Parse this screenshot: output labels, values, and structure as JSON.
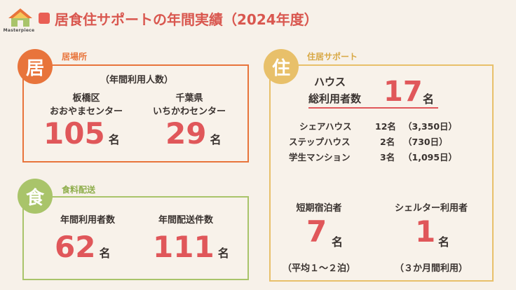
{
  "header": {
    "logo_text": "Masterpiece",
    "title": "居食住サポートの年間実績（2024年度）"
  },
  "colors": {
    "accent": "#e0575a",
    "kyo": "#e8743b",
    "shoku": "#a9c46a",
    "ju": "#e8c06a"
  },
  "kyo": {
    "icon_char": "居",
    "label": "居場所",
    "subheader": "（年間利用人数）",
    "left": {
      "name1": "板橋区",
      "name2": "おおやまセンター",
      "value": "105",
      "unit": "名"
    },
    "right": {
      "name1": "千葉県",
      "name2": "いちかわセンター",
      "value": "29",
      "unit": "名"
    }
  },
  "shoku": {
    "icon_char": "食",
    "label": "食料配送",
    "left": {
      "name": "年間利用者数",
      "value": "62",
      "unit": "名"
    },
    "right": {
      "name": "年間配送件数",
      "value": "111",
      "unit": "名"
    }
  },
  "ju": {
    "icon_char": "住",
    "label": "住居サポート",
    "house_label1": "ハウス",
    "house_label2": "総利用者数",
    "house_value": "17",
    "house_unit": "名",
    "rows": [
      {
        "name": "シェアハウス",
        "count": "12名",
        "days": "（3,350日）"
      },
      {
        "name": "ステップハウス",
        "count": "2名",
        "days": "（730日）"
      },
      {
        "name": "学生マンション",
        "count": "3名",
        "days": "（1,095日）"
      }
    ],
    "short": {
      "name": "短期宿泊者",
      "value": "7",
      "unit": "名",
      "note": "（平均１〜２泊）"
    },
    "shelter": {
      "name": "シェルター利用者",
      "value": "1",
      "unit": "名",
      "note": "（３か月間利用）"
    }
  }
}
